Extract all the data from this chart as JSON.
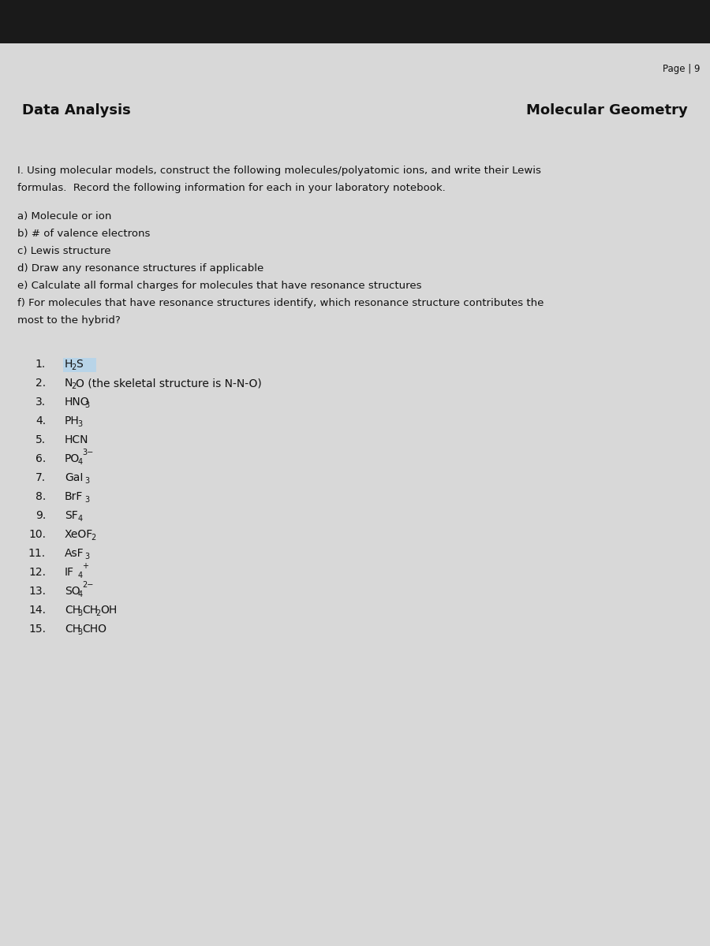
{
  "page_label": "Page | 9",
  "header_left": "Data Analysis",
  "header_right": "Molecular Geometry",
  "intro_text1": "I. Using molecular models, construct the following molecules/polyatomic ions, and write their Lewis",
  "intro_text2": "formulas.  Record the following information for each in your laboratory notebook.",
  "items_alpha": [
    "a) Molecule or ion",
    "b) # of valence electrons",
    "c) Lewis structure",
    "d) Draw any resonance structures if applicable",
    "e) Calculate all formal charges for molecules that have resonance structures",
    "f) For molecules that have resonance structures identify, which resonance structure contributes the",
    "most to the hybrid?"
  ],
  "bg_dark": "#1a1a1a",
  "bg_paper": "#d8d8d8",
  "header_bg": "#cccccc",
  "text_color": "#111111",
  "highlight_color": "#b8d4e8"
}
